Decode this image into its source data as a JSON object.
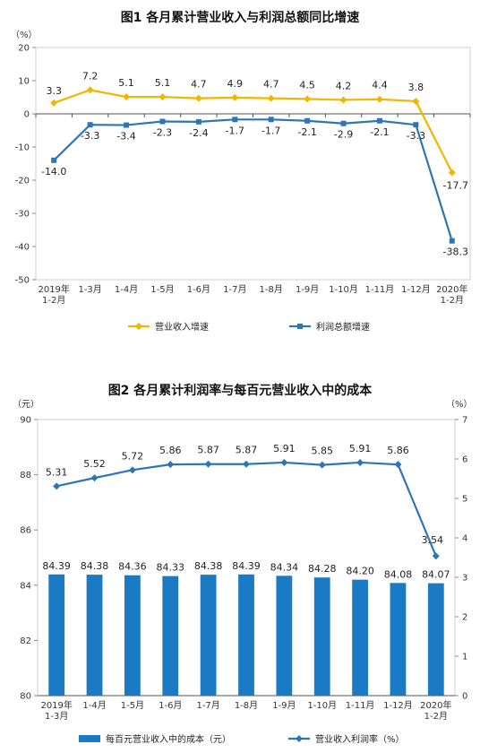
{
  "chart_data": [
    {
      "type": "line",
      "title": "图1  各月累计营业收入与利润总额同比增速",
      "y_unit": "（%）",
      "ylim": [
        -50,
        20
      ],
      "yticks": [
        "20",
        "10",
        "0",
        "-10",
        "-20",
        "-30",
        "-40",
        "-50"
      ],
      "categories": [
        "2019年\n1-2月",
        "1-3月",
        "1-4月",
        "1-5月",
        "1-6月",
        "1-7月",
        "1-8月",
        "1-9月",
        "1-10月",
        "1-11月",
        "1-12月",
        "2020年\n1-2月"
      ],
      "series": [
        {
          "name": "营业收入增速",
          "color": "#f5b400",
          "marker": "diamond",
          "values": [
            3.3,
            7.2,
            5.1,
            5.1,
            4.7,
            4.9,
            4.7,
            4.5,
            4.2,
            4.4,
            3.8,
            -17.7
          ],
          "labels": [
            "3.3",
            "7.2",
            "5.1",
            "5.1",
            "4.7",
            "4.9",
            "4.7",
            "4.5",
            "4.2",
            "4.4",
            "3.8",
            "-17.7"
          ]
        },
        {
          "name": "利润总额增速",
          "color": "#2e75b6",
          "marker": "square",
          "values": [
            -14.0,
            -3.3,
            -3.4,
            -2.3,
            -2.4,
            -1.7,
            -1.7,
            -2.1,
            -2.9,
            -2.1,
            -3.3,
            -38.3
          ],
          "labels": [
            "-14.0",
            "-3.3",
            "-3.4",
            "-2.3",
            "-2.4",
            "-1.7",
            "-1.7",
            "-2.1",
            "-2.9",
            "-2.1",
            "-3.3",
            "-38.3"
          ]
        }
      ],
      "legend_position": "bottom",
      "grid": false
    },
    {
      "type": "bar",
      "title": "图2  各月累计利润率与每百元营业收入中的成本",
      "y_unit_left": "（元）",
      "y_unit_right": "（%）",
      "ylim_left": [
        80,
        90
      ],
      "yticks_left": [
        "90",
        "88",
        "86",
        "84",
        "82",
        "80"
      ],
      "ylim_right": [
        0,
        7
      ],
      "yticks_right": [
        "7",
        "6",
        "5",
        "4",
        "3",
        "2",
        "1",
        "0"
      ],
      "categories": [
        "2019年\n1-3月",
        "1-4月",
        "1-5月",
        "1-6月",
        "1-7月",
        "1-8月",
        "1-9月",
        "1-10月",
        "1-11月",
        "1-12月",
        "2020年\n1-2月"
      ],
      "bar_series": {
        "name": "每百元营业收入中的成本（元）",
        "color": "#1a7bc4",
        "axis": "left",
        "values": [
          84.39,
          84.38,
          84.36,
          84.33,
          84.38,
          84.39,
          84.34,
          84.28,
          84.2,
          84.08,
          84.07
        ],
        "labels": [
          "84.39",
          "84.38",
          "84.36",
          "84.33",
          "84.38",
          "84.39",
          "84.34",
          "84.28",
          "84.20",
          "84.08",
          "84.07"
        ]
      },
      "line_series": {
        "name": "营业收入利润率（%）",
        "color": "#2e75b6",
        "axis": "right",
        "marker": "diamond",
        "values": [
          5.31,
          5.52,
          5.72,
          5.86,
          5.87,
          5.87,
          5.91,
          5.85,
          5.91,
          5.86,
          3.54
        ],
        "labels": [
          "5.31",
          "5.52",
          "5.72",
          "5.86",
          "5.87",
          "5.87",
          "5.91",
          "5.85",
          "5.91",
          "5.86",
          "3.54"
        ]
      },
      "legend_position": "bottom",
      "grid": false
    }
  ]
}
